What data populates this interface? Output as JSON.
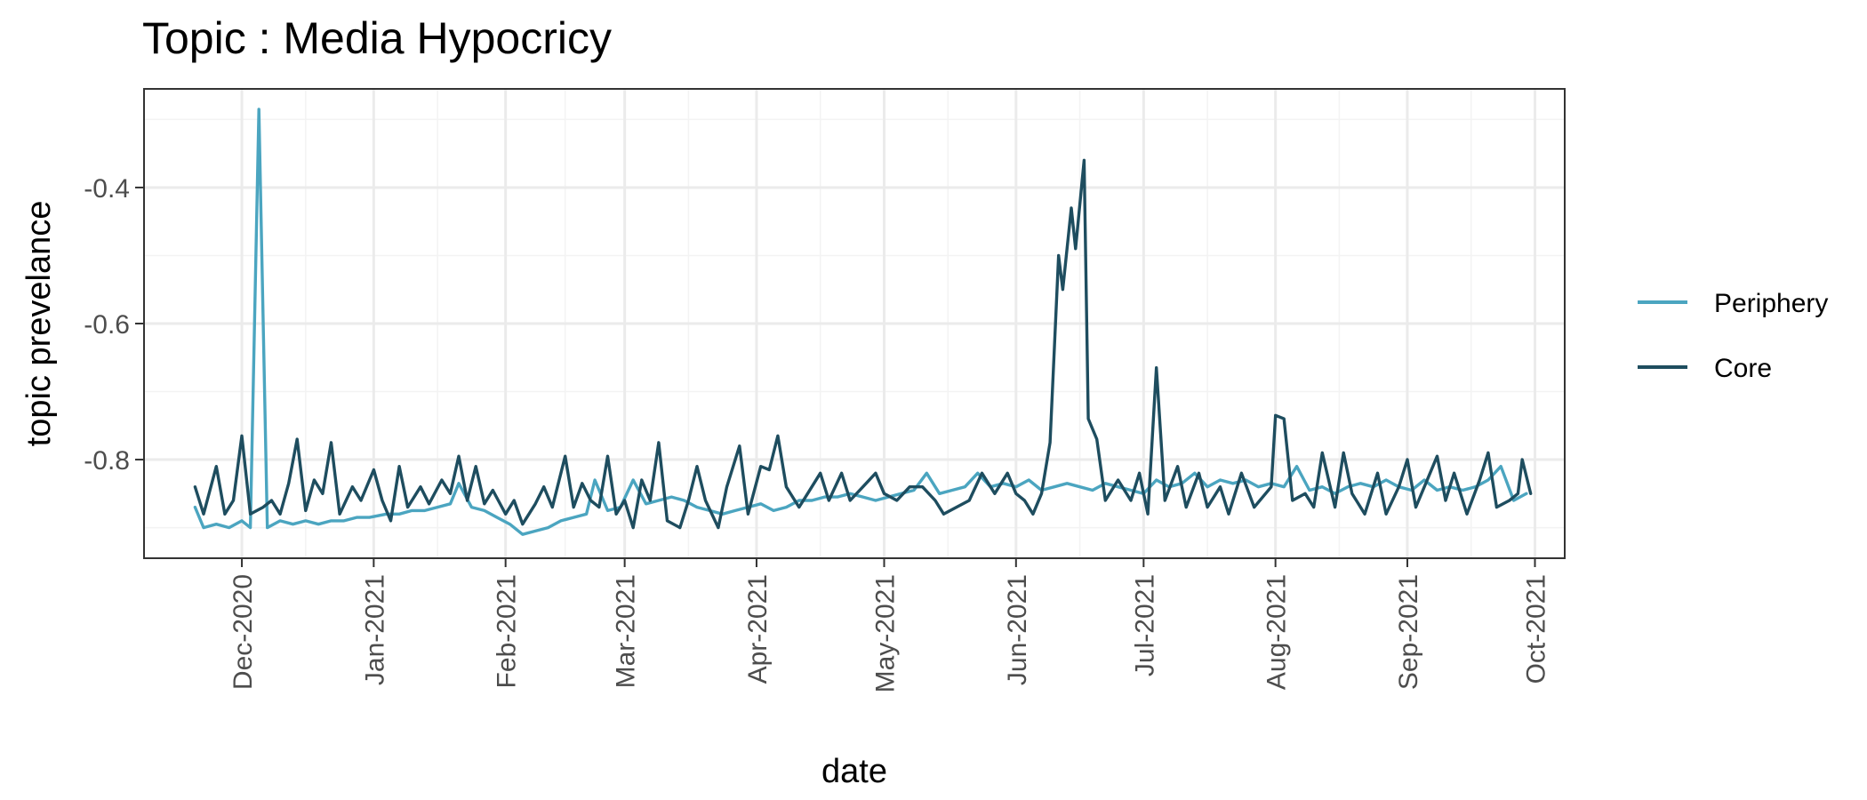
{
  "chart_data": {
    "type": "line",
    "title": "Topic : Media Hypocricy",
    "xlabel": "date",
    "ylabel": "topic prevelance",
    "x_axis_type": "date",
    "x_range": [
      "2020-11-08",
      "2021-10-08"
    ],
    "y_range": [
      -0.945,
      -0.255
    ],
    "grid": true,
    "legend_position": "right",
    "x_ticks": [
      {
        "date": "2020-12-01",
        "label": "Dec-2020"
      },
      {
        "date": "2021-01-01",
        "label": "Jan-2021"
      },
      {
        "date": "2021-02-01",
        "label": "Feb-2021"
      },
      {
        "date": "2021-03-01",
        "label": "Mar-2021"
      },
      {
        "date": "2021-04-01",
        "label": "Apr-2021"
      },
      {
        "date": "2021-05-01",
        "label": "May-2021"
      },
      {
        "date": "2021-06-01",
        "label": "Jun-2021"
      },
      {
        "date": "2021-07-01",
        "label": "Jul-2021"
      },
      {
        "date": "2021-08-01",
        "label": "Aug-2021"
      },
      {
        "date": "2021-09-01",
        "label": "Sep-2021"
      },
      {
        "date": "2021-10-01",
        "label": "Oct-2021"
      }
    ],
    "y_ticks": [
      {
        "value": -0.4,
        "label": "-0.4"
      },
      {
        "value": -0.6,
        "label": "-0.6"
      },
      {
        "value": -0.8,
        "label": "-0.8"
      }
    ],
    "series": [
      {
        "name": "Periphery",
        "color": "#4BA5C0",
        "points": [
          [
            "2020-11-20",
            -0.87
          ],
          [
            "2020-11-22",
            -0.9
          ],
          [
            "2020-11-25",
            -0.895
          ],
          [
            "2020-11-28",
            -0.9
          ],
          [
            "2020-12-01",
            -0.89
          ],
          [
            "2020-12-03",
            -0.9
          ],
          [
            "2020-12-05",
            -0.285
          ],
          [
            "2020-12-07",
            -0.9
          ],
          [
            "2020-12-10",
            -0.89
          ],
          [
            "2020-12-13",
            -0.895
          ],
          [
            "2020-12-16",
            -0.89
          ],
          [
            "2020-12-19",
            -0.895
          ],
          [
            "2020-12-22",
            -0.89
          ],
          [
            "2020-12-25",
            -0.89
          ],
          [
            "2020-12-28",
            -0.885
          ],
          [
            "2020-12-31",
            -0.885
          ],
          [
            "2021-01-04",
            -0.88
          ],
          [
            "2021-01-07",
            -0.88
          ],
          [
            "2021-01-10",
            -0.875
          ],
          [
            "2021-01-13",
            -0.875
          ],
          [
            "2021-01-16",
            -0.87
          ],
          [
            "2021-01-19",
            -0.865
          ],
          [
            "2021-01-21",
            -0.835
          ],
          [
            "2021-01-24",
            -0.87
          ],
          [
            "2021-01-27",
            -0.875
          ],
          [
            "2021-01-30",
            -0.885
          ],
          [
            "2021-02-02",
            -0.895
          ],
          [
            "2021-02-05",
            -0.91
          ],
          [
            "2021-02-08",
            -0.905
          ],
          [
            "2021-02-11",
            -0.9
          ],
          [
            "2021-02-14",
            -0.89
          ],
          [
            "2021-02-17",
            -0.885
          ],
          [
            "2021-02-20",
            -0.88
          ],
          [
            "2021-02-22",
            -0.83
          ],
          [
            "2021-02-25",
            -0.875
          ],
          [
            "2021-02-28",
            -0.87
          ],
          [
            "2021-03-03",
            -0.83
          ],
          [
            "2021-03-06",
            -0.865
          ],
          [
            "2021-03-09",
            -0.86
          ],
          [
            "2021-03-12",
            -0.855
          ],
          [
            "2021-03-15",
            -0.86
          ],
          [
            "2021-03-18",
            -0.87
          ],
          [
            "2021-03-21",
            -0.875
          ],
          [
            "2021-03-24",
            -0.88
          ],
          [
            "2021-03-27",
            -0.875
          ],
          [
            "2021-03-30",
            -0.87
          ],
          [
            "2021-04-02",
            -0.865
          ],
          [
            "2021-04-05",
            -0.875
          ],
          [
            "2021-04-08",
            -0.87
          ],
          [
            "2021-04-11",
            -0.86
          ],
          [
            "2021-04-14",
            -0.86
          ],
          [
            "2021-04-17",
            -0.855
          ],
          [
            "2021-04-20",
            -0.855
          ],
          [
            "2021-04-23",
            -0.85
          ],
          [
            "2021-04-26",
            -0.855
          ],
          [
            "2021-04-29",
            -0.86
          ],
          [
            "2021-05-02",
            -0.855
          ],
          [
            "2021-05-05",
            -0.85
          ],
          [
            "2021-05-08",
            -0.845
          ],
          [
            "2021-05-11",
            -0.82
          ],
          [
            "2021-05-14",
            -0.85
          ],
          [
            "2021-05-17",
            -0.845
          ],
          [
            "2021-05-20",
            -0.84
          ],
          [
            "2021-05-23",
            -0.82
          ],
          [
            "2021-05-26",
            -0.84
          ],
          [
            "2021-05-29",
            -0.835
          ],
          [
            "2021-06-01",
            -0.84
          ],
          [
            "2021-06-04",
            -0.83
          ],
          [
            "2021-06-07",
            -0.845
          ],
          [
            "2021-06-10",
            -0.84
          ],
          [
            "2021-06-13",
            -0.835
          ],
          [
            "2021-06-16",
            -0.84
          ],
          [
            "2021-06-19",
            -0.845
          ],
          [
            "2021-06-22",
            -0.835
          ],
          [
            "2021-06-25",
            -0.84
          ],
          [
            "2021-06-28",
            -0.845
          ],
          [
            "2021-07-01",
            -0.85
          ],
          [
            "2021-07-04",
            -0.83
          ],
          [
            "2021-07-07",
            -0.84
          ],
          [
            "2021-07-10",
            -0.835
          ],
          [
            "2021-07-13",
            -0.82
          ],
          [
            "2021-07-16",
            -0.84
          ],
          [
            "2021-07-19",
            -0.83
          ],
          [
            "2021-07-22",
            -0.835
          ],
          [
            "2021-07-25",
            -0.83
          ],
          [
            "2021-07-28",
            -0.84
          ],
          [
            "2021-07-31",
            -0.835
          ],
          [
            "2021-08-03",
            -0.84
          ],
          [
            "2021-08-06",
            -0.81
          ],
          [
            "2021-08-09",
            -0.845
          ],
          [
            "2021-08-12",
            -0.84
          ],
          [
            "2021-08-15",
            -0.85
          ],
          [
            "2021-08-18",
            -0.84
          ],
          [
            "2021-08-21",
            -0.835
          ],
          [
            "2021-08-24",
            -0.84
          ],
          [
            "2021-08-27",
            -0.83
          ],
          [
            "2021-08-30",
            -0.84
          ],
          [
            "2021-09-02",
            -0.845
          ],
          [
            "2021-09-05",
            -0.83
          ],
          [
            "2021-09-08",
            -0.845
          ],
          [
            "2021-09-11",
            -0.84
          ],
          [
            "2021-09-14",
            -0.845
          ],
          [
            "2021-09-17",
            -0.84
          ],
          [
            "2021-09-20",
            -0.83
          ],
          [
            "2021-09-23",
            -0.81
          ],
          [
            "2021-09-26",
            -0.86
          ],
          [
            "2021-09-29",
            -0.85
          ]
        ]
      },
      {
        "name": "Core",
        "color": "#1E4D5F",
        "points": [
          [
            "2020-11-20",
            -0.84
          ],
          [
            "2020-11-22",
            -0.88
          ],
          [
            "2020-11-25",
            -0.81
          ],
          [
            "2020-11-27",
            -0.88
          ],
          [
            "2020-11-29",
            -0.86
          ],
          [
            "2020-12-01",
            -0.765
          ],
          [
            "2020-12-03",
            -0.88
          ],
          [
            "2020-12-06",
            -0.87
          ],
          [
            "2020-12-08",
            -0.86
          ],
          [
            "2020-12-10",
            -0.88
          ],
          [
            "2020-12-12",
            -0.835
          ],
          [
            "2020-12-14",
            -0.77
          ],
          [
            "2020-12-16",
            -0.875
          ],
          [
            "2020-12-18",
            -0.83
          ],
          [
            "2020-12-20",
            -0.85
          ],
          [
            "2020-12-22",
            -0.775
          ],
          [
            "2020-12-24",
            -0.88
          ],
          [
            "2020-12-27",
            -0.84
          ],
          [
            "2020-12-29",
            -0.86
          ],
          [
            "2021-01-01",
            -0.815
          ],
          [
            "2021-01-03",
            -0.86
          ],
          [
            "2021-01-05",
            -0.89
          ],
          [
            "2021-01-07",
            -0.81
          ],
          [
            "2021-01-09",
            -0.87
          ],
          [
            "2021-01-12",
            -0.84
          ],
          [
            "2021-01-14",
            -0.865
          ],
          [
            "2021-01-17",
            -0.83
          ],
          [
            "2021-01-19",
            -0.85
          ],
          [
            "2021-01-21",
            -0.795
          ],
          [
            "2021-01-23",
            -0.86
          ],
          [
            "2021-01-25",
            -0.81
          ],
          [
            "2021-01-27",
            -0.865
          ],
          [
            "2021-01-29",
            -0.845
          ],
          [
            "2021-02-01",
            -0.88
          ],
          [
            "2021-02-03",
            -0.86
          ],
          [
            "2021-02-05",
            -0.895
          ],
          [
            "2021-02-08",
            -0.865
          ],
          [
            "2021-02-10",
            -0.84
          ],
          [
            "2021-02-12",
            -0.87
          ],
          [
            "2021-02-15",
            -0.795
          ],
          [
            "2021-02-17",
            -0.87
          ],
          [
            "2021-02-19",
            -0.835
          ],
          [
            "2021-02-21",
            -0.86
          ],
          [
            "2021-02-23",
            -0.87
          ],
          [
            "2021-02-25",
            -0.795
          ],
          [
            "2021-02-27",
            -0.88
          ],
          [
            "2021-03-01",
            -0.86
          ],
          [
            "2021-03-03",
            -0.9
          ],
          [
            "2021-03-05",
            -0.83
          ],
          [
            "2021-03-07",
            -0.86
          ],
          [
            "2021-03-09",
            -0.775
          ],
          [
            "2021-03-11",
            -0.89
          ],
          [
            "2021-03-14",
            -0.9
          ],
          [
            "2021-03-16",
            -0.86
          ],
          [
            "2021-03-18",
            -0.81
          ],
          [
            "2021-03-20",
            -0.86
          ],
          [
            "2021-03-23",
            -0.9
          ],
          [
            "2021-03-25",
            -0.84
          ],
          [
            "2021-03-28",
            -0.78
          ],
          [
            "2021-03-30",
            -0.88
          ],
          [
            "2021-04-02",
            -0.81
          ],
          [
            "2021-04-04",
            -0.815
          ],
          [
            "2021-04-06",
            -0.765
          ],
          [
            "2021-04-08",
            -0.84
          ],
          [
            "2021-04-11",
            -0.87
          ],
          [
            "2021-04-13",
            -0.85
          ],
          [
            "2021-04-16",
            -0.82
          ],
          [
            "2021-04-18",
            -0.86
          ],
          [
            "2021-04-21",
            -0.82
          ],
          [
            "2021-04-23",
            -0.86
          ],
          [
            "2021-04-26",
            -0.84
          ],
          [
            "2021-04-29",
            -0.82
          ],
          [
            "2021-05-01",
            -0.85
          ],
          [
            "2021-05-04",
            -0.86
          ],
          [
            "2021-05-07",
            -0.84
          ],
          [
            "2021-05-10",
            -0.84
          ],
          [
            "2021-05-13",
            -0.86
          ],
          [
            "2021-05-15",
            -0.88
          ],
          [
            "2021-05-18",
            -0.87
          ],
          [
            "2021-05-21",
            -0.86
          ],
          [
            "2021-05-24",
            -0.82
          ],
          [
            "2021-05-27",
            -0.85
          ],
          [
            "2021-05-30",
            -0.82
          ],
          [
            "2021-06-01",
            -0.85
          ],
          [
            "2021-06-03",
            -0.86
          ],
          [
            "2021-06-05",
            -0.88
          ],
          [
            "2021-06-07",
            -0.85
          ],
          [
            "2021-06-09",
            -0.775
          ],
          [
            "2021-06-11",
            -0.5
          ],
          [
            "2021-06-12",
            -0.55
          ],
          [
            "2021-06-14",
            -0.43
          ],
          [
            "2021-06-15",
            -0.49
          ],
          [
            "2021-06-17",
            -0.36
          ],
          [
            "2021-06-18",
            -0.74
          ],
          [
            "2021-06-20",
            -0.77
          ],
          [
            "2021-06-22",
            -0.86
          ],
          [
            "2021-06-25",
            -0.83
          ],
          [
            "2021-06-28",
            -0.86
          ],
          [
            "2021-06-30",
            -0.82
          ],
          [
            "2021-07-02",
            -0.88
          ],
          [
            "2021-07-04",
            -0.665
          ],
          [
            "2021-07-06",
            -0.86
          ],
          [
            "2021-07-09",
            -0.81
          ],
          [
            "2021-07-11",
            -0.87
          ],
          [
            "2021-07-14",
            -0.82
          ],
          [
            "2021-07-16",
            -0.87
          ],
          [
            "2021-07-19",
            -0.84
          ],
          [
            "2021-07-21",
            -0.88
          ],
          [
            "2021-07-24",
            -0.82
          ],
          [
            "2021-07-27",
            -0.87
          ],
          [
            "2021-07-31",
            -0.84
          ],
          [
            "2021-08-01",
            -0.735
          ],
          [
            "2021-08-03",
            -0.74
          ],
          [
            "2021-08-05",
            -0.86
          ],
          [
            "2021-08-08",
            -0.85
          ],
          [
            "2021-08-10",
            -0.87
          ],
          [
            "2021-08-12",
            -0.79
          ],
          [
            "2021-08-15",
            -0.87
          ],
          [
            "2021-08-17",
            -0.79
          ],
          [
            "2021-08-19",
            -0.85
          ],
          [
            "2021-08-22",
            -0.88
          ],
          [
            "2021-08-25",
            -0.82
          ],
          [
            "2021-08-27",
            -0.88
          ],
          [
            "2021-08-30",
            -0.84
          ],
          [
            "2021-09-01",
            -0.8
          ],
          [
            "2021-09-03",
            -0.87
          ],
          [
            "2021-09-05",
            -0.84
          ],
          [
            "2021-09-08",
            -0.795
          ],
          [
            "2021-09-10",
            -0.86
          ],
          [
            "2021-09-12",
            -0.82
          ],
          [
            "2021-09-15",
            -0.88
          ],
          [
            "2021-09-18",
            -0.83
          ],
          [
            "2021-09-20",
            -0.79
          ],
          [
            "2021-09-22",
            -0.87
          ],
          [
            "2021-09-25",
            -0.86
          ],
          [
            "2021-09-27",
            -0.85
          ],
          [
            "2021-09-28",
            -0.8
          ],
          [
            "2021-09-30",
            -0.85
          ]
        ]
      }
    ]
  }
}
